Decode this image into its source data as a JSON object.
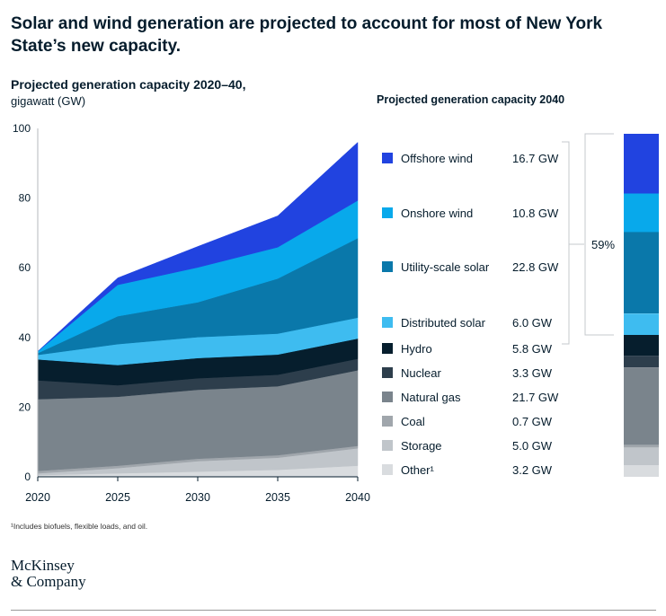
{
  "title": "Solar and wind generation are projected to account for most of New York State’s new capacity.",
  "chart_heading": "Projected generation capacity 2020–40,",
  "chart_unit": "gigawatt (GW)",
  "legend_heading": "Projected generation capacity 2040",
  "bracket_label": "59%",
  "footnote": "¹Includes biofuels, flexible loads, and oil.",
  "logo": {
    "line1": "McKinsey",
    "line2": "& Company"
  },
  "chart_data": [
    {
      "type": "area",
      "stacked": true,
      "title": "Projected generation capacity 2020–40,",
      "ylabel": "gigawatt (GW)",
      "ylim": [
        0,
        100
      ],
      "yticks": [
        0,
        20,
        40,
        60,
        80,
        100
      ],
      "x": [
        2020,
        2025,
        2030,
        2035,
        2040
      ],
      "xticks": [
        "2020",
        "2025",
        "2030",
        "2035",
        "2040"
      ],
      "grid": false,
      "series": [
        {
          "name": "Other¹",
          "color": "#d9dcdf",
          "values": [
            0.5,
            1.0,
            1.5,
            2.0,
            3.2
          ]
        },
        {
          "name": "Storage",
          "color": "#c0c5ca",
          "values": [
            0.5,
            1.5,
            3.0,
            3.5,
            5.0
          ]
        },
        {
          "name": "Coal",
          "color": "#a0a6ac",
          "values": [
            0.7,
            0.7,
            0.7,
            0.7,
            0.7
          ]
        },
        {
          "name": "Natural gas",
          "color": "#7a848c",
          "values": [
            20.6,
            19.8,
            19.8,
            19.8,
            21.7
          ]
        },
        {
          "name": "Nuclear",
          "color": "#2d3e4c",
          "values": [
            5.4,
            3.3,
            3.3,
            3.3,
            3.3
          ]
        },
        {
          "name": "Hydro",
          "color": "#061e2d",
          "values": [
            6.0,
            5.8,
            5.8,
            5.8,
            5.8
          ]
        },
        {
          "name": "Distributed solar",
          "color": "#3ebcf0",
          "values": [
            1.3,
            6.0,
            6.0,
            6.0,
            6.0
          ]
        },
        {
          "name": "Utility-scale solar",
          "color": "#0a78aa",
          "values": [
            0.5,
            8.0,
            10.0,
            15.8,
            22.8
          ]
        },
        {
          "name": "Onshore wind",
          "color": "#08a9eb",
          "values": [
            0.5,
            9.0,
            10.0,
            9.0,
            10.8
          ]
        },
        {
          "name": "Offshore wind",
          "color": "#2143e0",
          "values": [
            0.0,
            2.0,
            6.0,
            9.0,
            16.7
          ]
        }
      ]
    },
    {
      "type": "bar",
      "stacked": true,
      "title": "Projected generation capacity 2040",
      "categories": [
        "2040"
      ],
      "series": [
        {
          "name": "Offshore wind",
          "value": 16.7,
          "label": "16.7 GW",
          "color": "#2143e0"
        },
        {
          "name": "Onshore wind",
          "value": 10.8,
          "label": "10.8 GW",
          "color": "#08a9eb"
        },
        {
          "name": "Utility-scale solar",
          "value": 22.8,
          "label": "22.8 GW",
          "color": "#0a78aa"
        },
        {
          "name": "Distributed solar",
          "value": 6.0,
          "label": "6.0 GW",
          "color": "#3ebcf0"
        },
        {
          "name": "Hydro",
          "value": 5.8,
          "label": "5.8 GW",
          "color": "#061e2d"
        },
        {
          "name": "Nuclear",
          "value": 3.3,
          "label": "3.3  GW",
          "color": "#2d3e4c"
        },
        {
          "name": "Natural gas",
          "value": 21.7,
          "label": "21.7 GW",
          "color": "#7a848c"
        },
        {
          "name": "Coal",
          "value": 0.7,
          "label": "0.7 GW",
          "color": "#a0a6ac"
        },
        {
          "name": "Storage",
          "value": 5.0,
          "label": "5.0 GW",
          "color": "#c0c5ca"
        },
        {
          "name": "Other¹",
          "value": 3.2,
          "label": "3.2 GW",
          "color": "#d9dcdf"
        }
      ],
      "bracket": {
        "label": "59%",
        "covers": [
          "Offshore wind",
          "Onshore wind",
          "Utility-scale solar",
          "Distributed solar"
        ]
      }
    }
  ]
}
